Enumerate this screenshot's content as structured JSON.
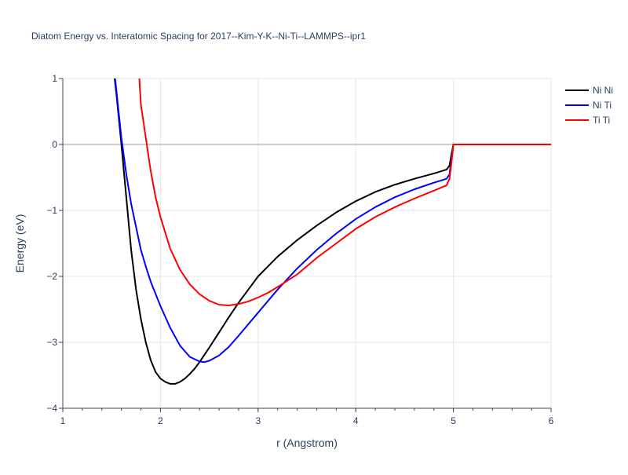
{
  "chart_data": {
    "type": "line",
    "title": "Diatom Energy vs. Interatomic Spacing for 2017--Kim-Y-K--Ni-Ti--LAMMPS--ipr1",
    "xlabel": "r (Angstrom)",
    "ylabel": "Energy (eV)",
    "xlim": [
      1,
      6
    ],
    "ylim": [
      -4,
      1
    ],
    "xticks": [
      1,
      2,
      3,
      4,
      5,
      6
    ],
    "xtick_labels": [
      "1",
      "2",
      "3",
      "4",
      "5",
      "6"
    ],
    "yticks": [
      1,
      0,
      -1,
      -2,
      -3,
      -4
    ],
    "ytick_labels": [
      "1",
      "0",
      "−1",
      "−2",
      "−3",
      "−4"
    ],
    "grid": true,
    "legend": "top-right",
    "series": [
      {
        "name": "Ni Ni",
        "color": "#000000",
        "x": [
          1.4,
          1.5,
          1.55,
          1.6,
          1.65,
          1.7,
          1.75,
          1.8,
          1.85,
          1.9,
          1.95,
          2.0,
          2.05,
          2.1,
          2.15,
          2.2,
          2.25,
          2.3,
          2.35,
          2.4,
          2.5,
          2.6,
          2.7,
          2.8,
          2.9,
          3.0,
          3.2,
          3.4,
          3.6,
          3.8,
          4.0,
          4.2,
          4.4,
          4.6,
          4.8,
          4.93,
          4.96,
          4.98,
          5.0,
          5.5,
          6.0
        ],
        "y": [
          2.8,
          1.4,
          0.75,
          0.0,
          -0.8,
          -1.6,
          -2.2,
          -2.65,
          -3.0,
          -3.27,
          -3.45,
          -3.55,
          -3.6,
          -3.63,
          -3.63,
          -3.6,
          -3.55,
          -3.48,
          -3.4,
          -3.3,
          -3.08,
          -2.85,
          -2.62,
          -2.4,
          -2.2,
          -2.0,
          -1.7,
          -1.45,
          -1.23,
          -1.03,
          -0.86,
          -0.72,
          -0.61,
          -0.52,
          -0.44,
          -0.38,
          -0.32,
          -0.15,
          0.0,
          0.0,
          0.0
        ]
      },
      {
        "name": "Ni Ti",
        "color": "#0000ff",
        "x": [
          1.45,
          1.5,
          1.55,
          1.6,
          1.65,
          1.7,
          1.75,
          1.8,
          1.85,
          1.9,
          2.0,
          2.1,
          2.2,
          2.3,
          2.4,
          2.45,
          2.5,
          2.6,
          2.7,
          2.8,
          3.0,
          3.2,
          3.4,
          3.6,
          3.8,
          4.0,
          4.2,
          4.4,
          4.6,
          4.8,
          4.93,
          4.96,
          4.98,
          5.0,
          5.5,
          6.0
        ],
        "y": [
          2.2,
          1.5,
          0.8,
          0.1,
          -0.45,
          -0.9,
          -1.25,
          -1.6,
          -1.85,
          -2.08,
          -2.45,
          -2.78,
          -3.05,
          -3.22,
          -3.29,
          -3.3,
          -3.28,
          -3.2,
          -3.07,
          -2.9,
          -2.55,
          -2.2,
          -1.88,
          -1.6,
          -1.35,
          -1.13,
          -0.95,
          -0.8,
          -0.68,
          -0.58,
          -0.52,
          -0.45,
          -0.22,
          0.0,
          0.0,
          0.0
        ]
      },
      {
        "name": "Ti Ti",
        "color": "#ff0000",
        "x": [
          1.7,
          1.75,
          1.78,
          1.8,
          1.85,
          1.9,
          1.95,
          2.0,
          2.1,
          2.2,
          2.3,
          2.4,
          2.5,
          2.6,
          2.7,
          2.8,
          2.9,
          3.0,
          3.1,
          3.2,
          3.4,
          3.6,
          3.8,
          4.0,
          4.2,
          4.4,
          4.6,
          4.8,
          4.93,
          4.96,
          4.98,
          5.0,
          5.5,
          6.0
        ],
        "y": [
          1.8,
          1.4,
          1.1,
          0.6,
          0.1,
          -0.4,
          -0.8,
          -1.1,
          -1.58,
          -1.9,
          -2.12,
          -2.27,
          -2.37,
          -2.43,
          -2.44,
          -2.42,
          -2.38,
          -2.32,
          -2.25,
          -2.16,
          -1.97,
          -1.72,
          -1.5,
          -1.28,
          -1.1,
          -0.95,
          -0.82,
          -0.7,
          -0.62,
          -0.52,
          -0.28,
          0.0,
          0.0,
          0.0
        ]
      }
    ]
  }
}
